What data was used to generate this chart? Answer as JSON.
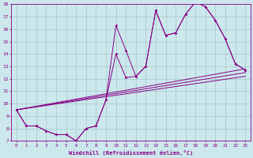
{
  "xlabel": "Windchill (Refroidissement éolien,°C)",
  "bg_color": "#cce8ec",
  "grid_color": "#aacccc",
  "line_color": "#880088",
  "xlim": [
    -0.5,
    23.5
  ],
  "ylim": [
    7,
    18
  ],
  "xticks": [
    0,
    1,
    2,
    3,
    4,
    5,
    6,
    7,
    8,
    9,
    10,
    11,
    12,
    13,
    14,
    15,
    16,
    17,
    18,
    19,
    20,
    21,
    22,
    23
  ],
  "yticks": [
    7,
    8,
    9,
    10,
    11,
    12,
    13,
    14,
    15,
    16,
    17,
    18
  ],
  "series1_x": [
    0,
    1,
    2,
    3,
    4,
    5,
    6,
    7,
    8,
    9,
    10,
    11,
    12,
    13,
    14,
    15,
    16,
    17,
    18,
    19,
    20,
    21,
    22,
    23
  ],
  "series1_y": [
    9.5,
    8.2,
    8.2,
    7.8,
    7.5,
    7.5,
    7.0,
    8.0,
    8.2,
    10.3,
    14.0,
    12.1,
    12.2,
    13.0,
    17.5,
    15.5,
    15.7,
    17.2,
    18.2,
    17.8,
    16.7,
    15.2,
    13.2,
    12.7
  ],
  "series2_x": [
    0,
    1,
    2,
    3,
    4,
    5,
    6,
    7,
    8,
    9,
    10,
    11,
    12,
    13,
    14,
    15,
    16,
    17,
    18,
    19,
    20,
    21,
    22,
    23
  ],
  "series2_y": [
    9.5,
    8.2,
    8.2,
    7.8,
    7.5,
    7.5,
    7.0,
    8.0,
    8.2,
    10.3,
    16.3,
    14.3,
    12.2,
    13.0,
    17.5,
    15.5,
    15.7,
    17.2,
    18.2,
    17.8,
    16.7,
    15.2,
    13.2,
    12.7
  ],
  "diag_lines": [
    {
      "x": [
        0,
        23
      ],
      "y": [
        9.5,
        12.2
      ]
    },
    {
      "x": [
        0,
        23
      ],
      "y": [
        9.5,
        12.5
      ]
    },
    {
      "x": [
        0,
        23
      ],
      "y": [
        9.5,
        12.8
      ]
    }
  ]
}
